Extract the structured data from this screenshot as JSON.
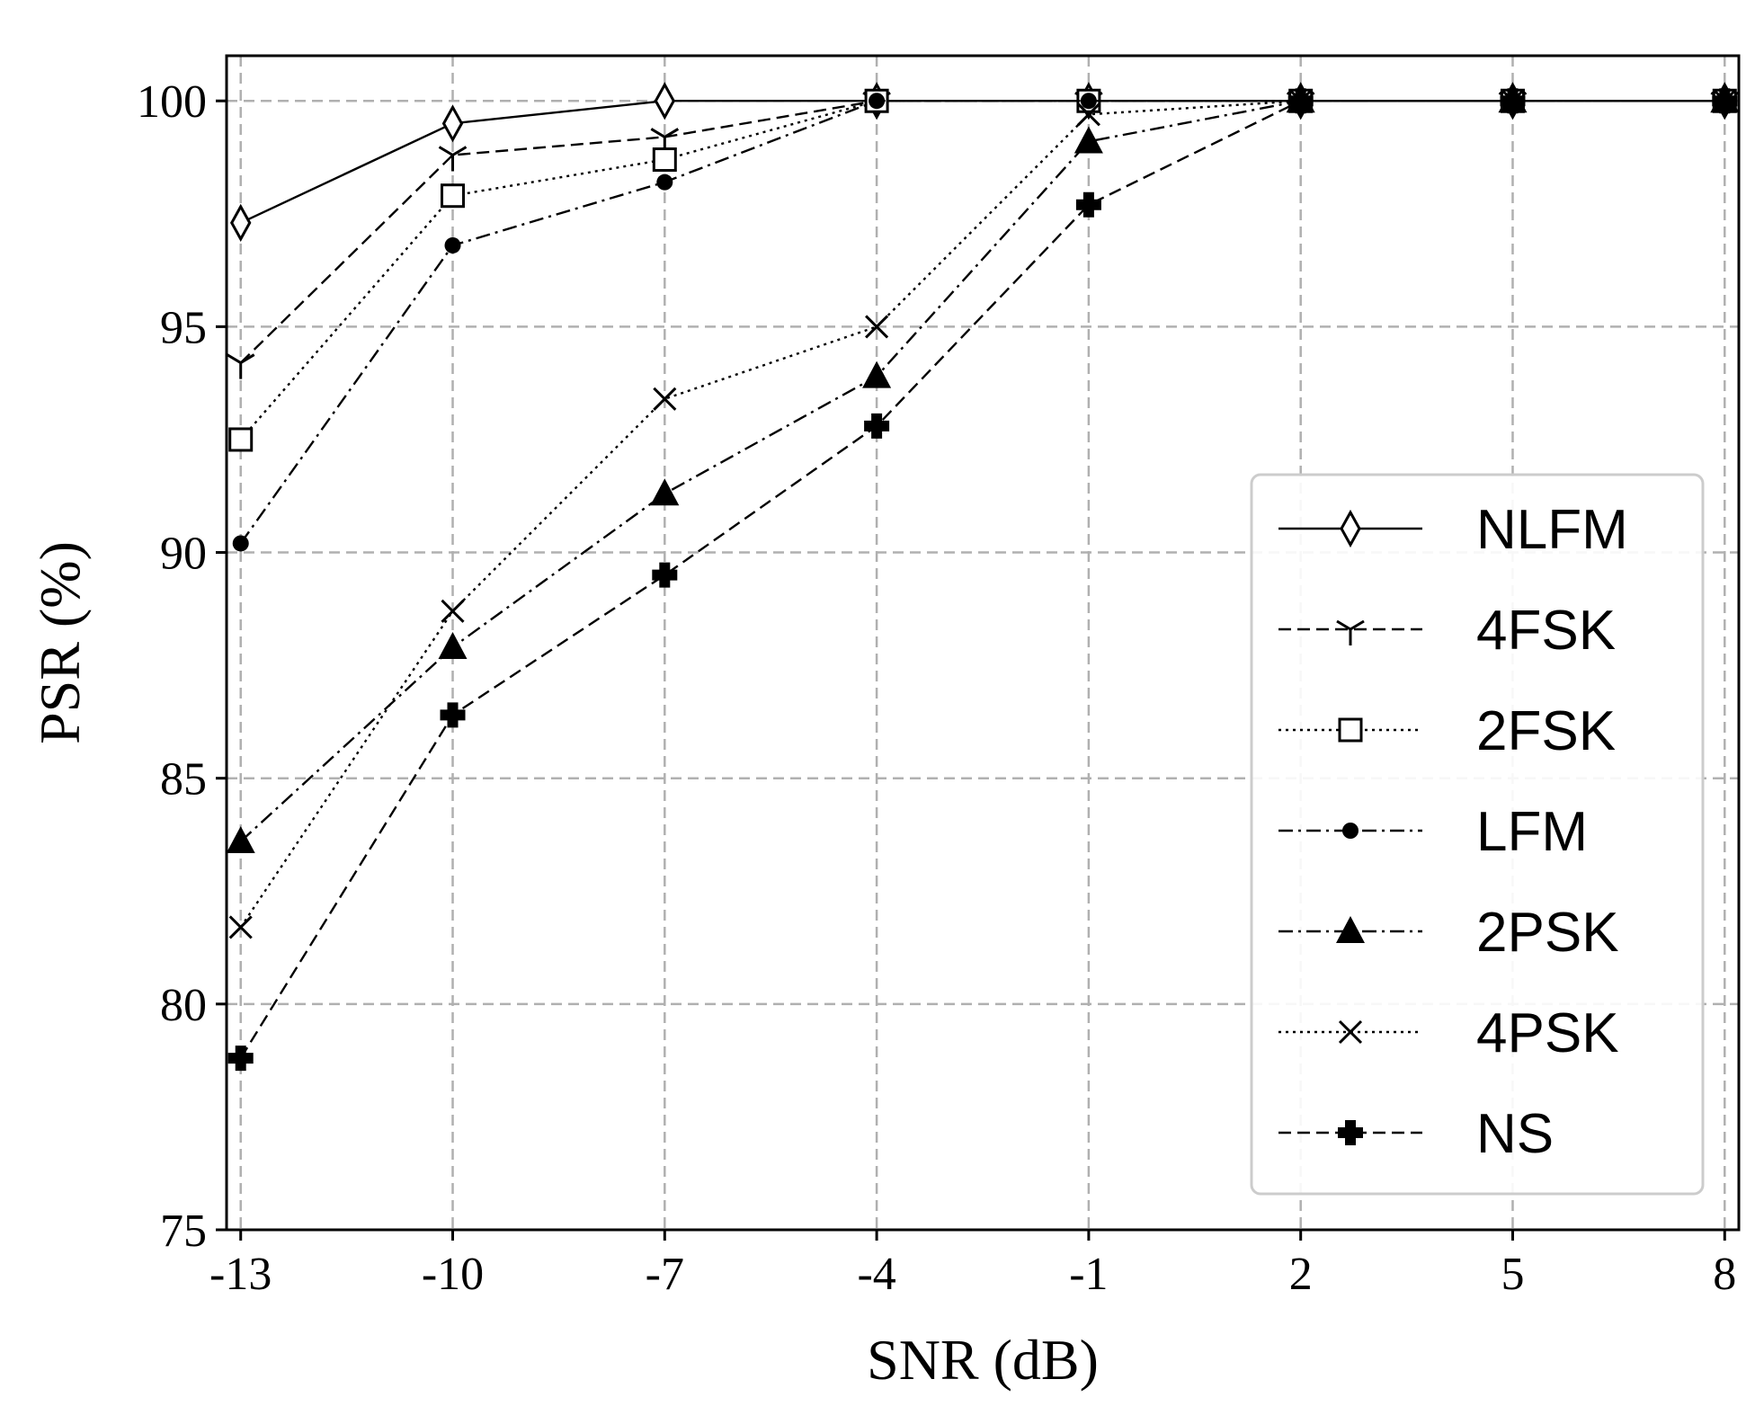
{
  "chart_data": {
    "type": "line",
    "title": "",
    "xlabel": "SNR (dB)",
    "ylabel": "PSR (%)",
    "x": [
      -13,
      -10,
      -7,
      -4,
      -1,
      2,
      5,
      8
    ],
    "x_tick_labels": [
      "-13",
      "-10",
      "-7",
      "-4",
      "-1",
      "2",
      "5",
      "8"
    ],
    "xlim": [
      -13.2,
      8.2
    ],
    "ylim": [
      75,
      101
    ],
    "y_ticks": [
      75,
      80,
      85,
      90,
      95,
      100
    ],
    "y_tick_labels": [
      "75",
      "80",
      "85",
      "90",
      "95",
      "100"
    ],
    "grid": true,
    "legend_position": "center-right",
    "series": [
      {
        "name": "NLFM",
        "marker": "diamond-open",
        "linestyle": "solid",
        "values": [
          97.3,
          99.5,
          100,
          100,
          100,
          100,
          100,
          100
        ]
      },
      {
        "name": "4FSK",
        "marker": "tri-down",
        "linestyle": "dashed",
        "values": [
          94.2,
          98.8,
          99.2,
          100,
          100,
          100,
          100,
          100
        ]
      },
      {
        "name": "2FSK",
        "marker": "square-open",
        "linestyle": "dotted",
        "values": [
          92.5,
          97.9,
          98.7,
          100,
          100,
          100,
          100,
          100
        ]
      },
      {
        "name": "LFM",
        "marker": "circle-filled",
        "linestyle": "dashdot",
        "values": [
          90.2,
          96.8,
          98.2,
          100,
          100,
          100,
          100,
          100
        ]
      },
      {
        "name": "2PSK",
        "marker": "triangle-filled",
        "linestyle": "dashdot",
        "values": [
          83.6,
          87.9,
          91.3,
          93.9,
          99.1,
          100,
          100,
          100
        ]
      },
      {
        "name": "4PSK",
        "marker": "x",
        "linestyle": "dotted",
        "values": [
          81.7,
          88.7,
          93.4,
          95.0,
          99.7,
          100,
          100,
          100
        ]
      },
      {
        "name": "NS",
        "marker": "plus-filled",
        "linestyle": "dashed",
        "values": [
          78.8,
          86.4,
          89.5,
          92.8,
          97.7,
          100,
          100,
          100
        ]
      }
    ]
  }
}
